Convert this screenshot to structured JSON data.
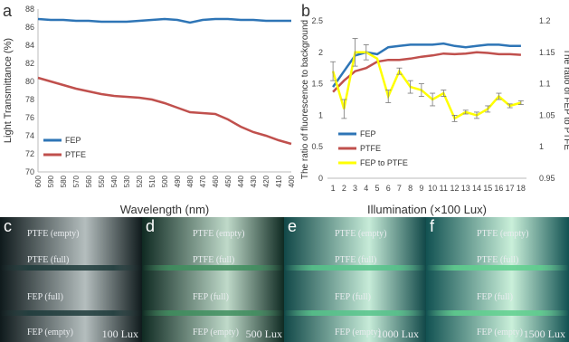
{
  "colors": {
    "fep": "#2e75b6",
    "ptfe": "#c0504d",
    "fep_to_ptfe": "#ffff00"
  },
  "chart_data": [
    {
      "panel": "a",
      "type": "line",
      "xlabel": "Wavelength (nm)",
      "ylabel": "Light Transmittance (%)",
      "x_reversed": true,
      "xlim": [
        600,
        400
      ],
      "ylim": [
        70,
        88
      ],
      "yticks": [
        70,
        72,
        74,
        76,
        78,
        80,
        82,
        84,
        86,
        88
      ],
      "x_ticks": [
        600,
        590,
        580,
        570,
        560,
        550,
        540,
        530,
        520,
        510,
        500,
        490,
        480,
        470,
        460,
        450,
        440,
        430,
        420,
        410,
        400
      ],
      "legend": "bottom-left",
      "series": [
        {
          "name": "FEP",
          "color": "#2e75b6",
          "x": [
            600,
            590,
            580,
            570,
            560,
            550,
            540,
            530,
            520,
            510,
            500,
            490,
            480,
            470,
            460,
            450,
            440,
            430,
            420,
            410,
            400
          ],
          "values": [
            86.9,
            86.8,
            86.8,
            86.7,
            86.7,
            86.6,
            86.6,
            86.6,
            86.7,
            86.8,
            86.9,
            86.8,
            86.5,
            86.8,
            86.9,
            86.9,
            86.8,
            86.8,
            86.7,
            86.7,
            86.7
          ]
        },
        {
          "name": "PTFE",
          "color": "#c0504d",
          "x": [
            600,
            590,
            580,
            570,
            560,
            550,
            540,
            530,
            520,
            510,
            500,
            490,
            480,
            470,
            460,
            450,
            440,
            430,
            420,
            410,
            400
          ],
          "values": [
            80.4,
            80.0,
            79.6,
            79.2,
            78.9,
            78.6,
            78.4,
            78.3,
            78.2,
            78.0,
            77.6,
            77.1,
            76.6,
            76.5,
            76.4,
            75.8,
            75.0,
            74.4,
            74.0,
            73.5,
            73.1
          ]
        }
      ]
    },
    {
      "panel": "b",
      "type": "line",
      "xlabel": "Illumination (×100 Lux)",
      "ylabel": "The ratio of fluorescence to background",
      "ylabel2": "The ratio of FEP to PTFE",
      "categories": [
        1,
        2,
        3,
        4,
        5,
        6,
        7,
        8,
        9,
        10,
        11,
        12,
        13,
        14,
        15,
        16,
        17,
        18
      ],
      "ylim": [
        0,
        2.5
      ],
      "yticks": [
        0,
        0.5,
        1,
        1.5,
        2,
        2.5
      ],
      "ylim2": [
        0.95,
        1.2
      ],
      "yticks2": [
        0.95,
        1,
        1.05,
        1.1,
        1.15,
        1.2
      ],
      "legend": "bottom-left",
      "series": [
        {
          "name": "FEP",
          "color": "#2e75b6",
          "axis": "left",
          "values": [
            1.45,
            1.7,
            1.95,
            2.0,
            1.97,
            2.08,
            2.1,
            2.12,
            2.12,
            2.12,
            2.14,
            2.1,
            2.08,
            2.1,
            2.12,
            2.12,
            2.1,
            2.1
          ]
        },
        {
          "name": "PTFE",
          "color": "#c0504d",
          "axis": "left",
          "values": [
            1.37,
            1.55,
            1.7,
            1.75,
            1.85,
            1.88,
            1.88,
            1.9,
            1.93,
            1.95,
            1.98,
            1.97,
            1.98,
            2.0,
            1.99,
            1.97,
            1.97,
            1.96
          ]
        },
        {
          "name": "FEP to PTFE",
          "color": "#ffff00",
          "axis": "right",
          "values": [
            1.12,
            1.06,
            1.15,
            1.15,
            1.14,
            1.08,
            1.12,
            1.095,
            1.09,
            1.075,
            1.085,
            1.045,
            1.055,
            1.05,
            1.06,
            1.08,
            1.065,
            1.07
          ],
          "errors": [
            0.015,
            0.015,
            0.022,
            0.012,
            0.0,
            0.01,
            0.005,
            0.01,
            0.01,
            0.01,
            0.005,
            0.005,
            0.003,
            0.005,
            0.005,
            0.005,
            0.003,
            0.003
          ]
        }
      ]
    }
  ],
  "photos": [
    {
      "letter": "c",
      "lux": "100 Lux",
      "labels": [
        "PTFE (empty)",
        "PTFE (full)",
        "FEP (full)",
        "FEP (empty)"
      ],
      "bg": "#0f1a1c",
      "glow": "#1e3b3b"
    },
    {
      "letter": "d",
      "lux": "500 Lux",
      "labels": [
        "PTFE (empty)",
        "PTFE (full)",
        "FEP (full)",
        "FEP (empty)"
      ],
      "bg": "#0f2a22",
      "glow": "#3f8f5e"
    },
    {
      "letter": "e",
      "lux": "1000 Lux",
      "labels": [
        "PTFE (empty)",
        "PTFE (full)",
        "FEP (full)",
        "FEP (empty)"
      ],
      "bg": "#114848",
      "glow": "#56c48a"
    },
    {
      "letter": "f",
      "lux": "1500 Lux",
      "labels": [
        "PTFE (empty)",
        "PTFE (full)",
        "FEP (full)",
        "FEP (empty)"
      ],
      "bg": "#125252",
      "glow": "#5fd08e"
    }
  ]
}
